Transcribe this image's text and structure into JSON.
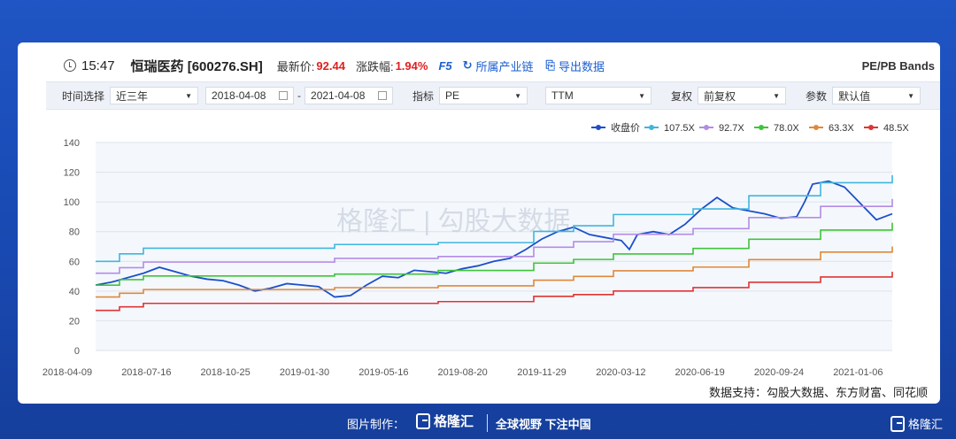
{
  "header": {
    "time": "15:47",
    "stock": "恒瑞医药 [600276.SH]",
    "price_label": "最新价:",
    "price": "92.44",
    "change_label": "涨跌幅:",
    "change": "1.94%",
    "f5": "F5",
    "industry_chain": "所属产业链",
    "export": "导出数据",
    "mode": "PE/PB Bands"
  },
  "filters": {
    "time_label": "时间选择",
    "time_value": "近三年",
    "date_from": "2018-04-08",
    "date_to": "2021-04-08",
    "date_sep": "-",
    "indicator_label": "指标",
    "indicator_value": "PE",
    "ttm_value": "TTM",
    "adjust_label": "复权",
    "adjust_value": "前复权",
    "param_label": "参数",
    "param_value": "默认值"
  },
  "chart_data": {
    "type": "line",
    "ylim": [
      0,
      140
    ],
    "yticks": [
      0,
      20,
      40,
      60,
      80,
      100,
      120,
      140
    ],
    "xticks": [
      "2018-04-09",
      "2018-07-16",
      "2018-10-25",
      "2019-01-30",
      "2019-05-16",
      "2019-08-20",
      "2019-11-29",
      "2020-03-12",
      "2020-06-19",
      "2020-09-24",
      "2021-01-06"
    ],
    "legend_position": "top-right",
    "grid": "horizontal",
    "watermark": "格隆汇 | 勾股大数据",
    "source": "数据支持：勾股大数据、东方财富、同花顺",
    "series": [
      {
        "name": "收盘价",
        "color": "#1d4fc9",
        "kind": "price",
        "points": [
          [
            0,
            44
          ],
          [
            0.02,
            46
          ],
          [
            0.04,
            49
          ],
          [
            0.06,
            52
          ],
          [
            0.08,
            56
          ],
          [
            0.1,
            53
          ],
          [
            0.12,
            50
          ],
          [
            0.14,
            48
          ],
          [
            0.16,
            47
          ],
          [
            0.18,
            44
          ],
          [
            0.2,
            40
          ],
          [
            0.22,
            42
          ],
          [
            0.24,
            45
          ],
          [
            0.26,
            44
          ],
          [
            0.28,
            43
          ],
          [
            0.3,
            36
          ],
          [
            0.32,
            37
          ],
          [
            0.34,
            44
          ],
          [
            0.36,
            50
          ],
          [
            0.38,
            49
          ],
          [
            0.4,
            54
          ],
          [
            0.42,
            53
          ],
          [
            0.44,
            52
          ],
          [
            0.46,
            55
          ],
          [
            0.48,
            57
          ],
          [
            0.5,
            60
          ],
          [
            0.52,
            62
          ],
          [
            0.54,
            68
          ],
          [
            0.56,
            75
          ],
          [
            0.58,
            80
          ],
          [
            0.6,
            83
          ],
          [
            0.62,
            78
          ],
          [
            0.64,
            76
          ],
          [
            0.66,
            74
          ],
          [
            0.67,
            68
          ],
          [
            0.68,
            78
          ],
          [
            0.7,
            80
          ],
          [
            0.72,
            78
          ],
          [
            0.74,
            85
          ],
          [
            0.76,
            95
          ],
          [
            0.78,
            103
          ],
          [
            0.8,
            96
          ],
          [
            0.82,
            94
          ],
          [
            0.84,
            92
          ],
          [
            0.86,
            89
          ],
          [
            0.88,
            90
          ],
          [
            0.89,
            100
          ],
          [
            0.9,
            112
          ],
          [
            0.92,
            114
          ],
          [
            0.94,
            110
          ],
          [
            0.96,
            99
          ],
          [
            0.98,
            88
          ],
          [
            1.0,
            92
          ]
        ]
      },
      {
        "name": "107.5X",
        "color": "#3fb6de",
        "kind": "band",
        "steps": [
          [
            0,
            60
          ],
          [
            0.03,
            64
          ],
          [
            0.06,
            67
          ],
          [
            0.3,
            69
          ],
          [
            0.43,
            70
          ],
          [
            0.55,
            76
          ],
          [
            0.6,
            79
          ],
          [
            0.65,
            85
          ],
          [
            0.75,
            88
          ],
          [
            0.82,
            95
          ],
          [
            0.91,
            102
          ],
          [
            1.0,
            106
          ]
        ],
        "end": 118
      },
      {
        "name": "92.7X",
        "color": "#b38be6",
        "kind": "band",
        "steps": [
          [
            0,
            52
          ],
          [
            0.03,
            55
          ],
          [
            0.06,
            58
          ],
          [
            0.3,
            60
          ],
          [
            0.43,
            61
          ],
          [
            0.55,
            66
          ],
          [
            0.6,
            69
          ],
          [
            0.65,
            73
          ],
          [
            0.75,
            76
          ],
          [
            0.82,
            82
          ],
          [
            0.91,
            88
          ],
          [
            1.0,
            92
          ]
        ],
        "end": 102
      },
      {
        "name": "78.0X",
        "color": "#3ec43b",
        "kind": "band",
        "steps": [
          [
            0,
            44
          ],
          [
            0.03,
            47
          ],
          [
            0.06,
            49
          ],
          [
            0.3,
            50
          ],
          [
            0.43,
            52
          ],
          [
            0.55,
            56
          ],
          [
            0.6,
            58
          ],
          [
            0.65,
            61
          ],
          [
            0.75,
            64
          ],
          [
            0.82,
            69
          ],
          [
            0.91,
            74
          ],
          [
            1.0,
            78
          ]
        ],
        "end": 86
      },
      {
        "name": "63.3X",
        "color": "#e0883a",
        "kind": "band",
        "steps": [
          [
            0,
            36
          ],
          [
            0.03,
            38
          ],
          [
            0.06,
            40
          ],
          [
            0.3,
            41
          ],
          [
            0.43,
            42
          ],
          [
            0.55,
            45
          ],
          [
            0.6,
            47
          ],
          [
            0.65,
            50
          ],
          [
            0.75,
            52
          ],
          [
            0.82,
            56
          ],
          [
            0.91,
            60
          ],
          [
            1.0,
            63
          ]
        ],
        "end": 70
      },
      {
        "name": "48.5X",
        "color": "#e03434",
        "kind": "band",
        "steps": [
          [
            0,
            27
          ],
          [
            0.03,
            29
          ],
          [
            0.06,
            31
          ],
          [
            0.3,
            31
          ],
          [
            0.43,
            32
          ],
          [
            0.55,
            35
          ],
          [
            0.6,
            36
          ],
          [
            0.65,
            38
          ],
          [
            0.75,
            40
          ],
          [
            0.82,
            43
          ],
          [
            0.91,
            46
          ],
          [
            1.0,
            49
          ]
        ],
        "end": 53
      }
    ]
  },
  "footer": {
    "made_by": "图片制作：",
    "brand": "格隆汇",
    "slogan": "全球视野 下注中国",
    "corner_brand": "格隆汇"
  }
}
